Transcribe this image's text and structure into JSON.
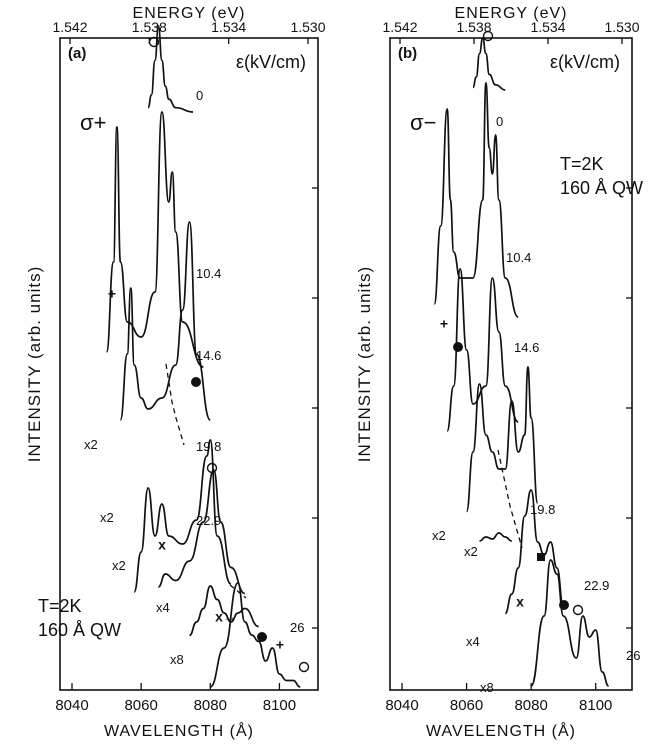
{
  "chart_data": [
    {
      "type": "line",
      "panel_label": "(a)",
      "polarization": "σ+",
      "field_header": "ε(kV/cm)",
      "xlabel": "WAVELENGTH  (Å)",
      "ylabel": "INTENSITY (arb. units)",
      "top_xlabel": "ENERGY  (eV)",
      "xlim": [
        8040,
        8110
      ],
      "xticks": [
        "8040",
        "8060",
        "8080",
        "8100"
      ],
      "top_ticks": [
        "1.542",
        "1.538",
        "1.534",
        "1.530"
      ],
      "sample_note": [
        "T=2K",
        "160 Å QW"
      ],
      "series": [
        {
          "field": "0",
          "multiplier": "",
          "x": [
            8062,
            8063,
            8064,
            8065,
            8066,
            8067,
            8068,
            8070,
            8075
          ],
          "y": [
            0.05,
            0.2,
            0.6,
            1.0,
            0.6,
            0.3,
            0.15,
            0.05,
            0.0
          ]
        },
        {
          "field": "10.4",
          "multiplier": "",
          "x": [
            8050,
            8052,
            8053,
            8054,
            8056,
            8060,
            8064,
            8066,
            8068,
            8069,
            8070,
            8072,
            8078
          ],
          "y": [
            0.1,
            0.4,
            0.85,
            0.4,
            0.2,
            0.15,
            0.3,
            0.9,
            0.6,
            0.7,
            0.5,
            0.2,
            0.05
          ]
        },
        {
          "field": "14.6",
          "multiplier": "x2",
          "x": [
            8054,
            8056,
            8057,
            8058,
            8060,
            8062,
            8066,
            8070,
            8072,
            8074,
            8076,
            8080
          ],
          "y": [
            0.1,
            0.4,
            0.7,
            0.35,
            0.2,
            0.15,
            0.2,
            0.35,
            0.6,
            1.0,
            0.4,
            0.1
          ]
        },
        {
          "field": "19.8",
          "multiplier": "x2",
          "x": [
            8058,
            8060,
            8062,
            8064,
            8066,
            8068,
            8072,
            8076,
            8079,
            8080,
            8082,
            8086
          ],
          "y": [
            0.05,
            0.3,
            0.7,
            0.4,
            0.6,
            0.4,
            0.35,
            0.5,
            0.9,
            1.0,
            0.4,
            0.1
          ]
        },
        {
          "field": "22.9",
          "multiplier": "x2",
          "x": [
            8065,
            8067,
            8070,
            8074,
            8078,
            8081,
            8083,
            8086,
            8090
          ],
          "y": [
            0.1,
            0.2,
            0.15,
            0.3,
            0.6,
            1.0,
            0.6,
            0.25,
            0.05
          ]
        },
        {
          "field": "22.9",
          "multiplier": "x4",
          "x": [
            8074,
            8076,
            8078,
            8080,
            8082,
            8084,
            8086,
            8088,
            8090,
            8094
          ],
          "y": [
            0.05,
            0.2,
            0.35,
            0.6,
            0.45,
            0.3,
            0.2,
            0.3,
            0.35,
            0.15
          ]
        },
        {
          "field": "26",
          "multiplier": "x8",
          "x": [
            8080,
            8084,
            8088,
            8090,
            8092,
            8094,
            8096,
            8098,
            8100,
            8102,
            8104,
            8106
          ],
          "y": [
            0.1,
            0.4,
            0.9,
            0.6,
            0.5,
            0.45,
            0.3,
            0.4,
            0.2,
            0.15,
            0.15,
            0.1
          ]
        }
      ],
      "peak_annotations": [
        {
          "field": "0",
          "marker": "○"
        },
        {
          "field": "10.4",
          "marker": "+"
        },
        {
          "field": "14.6",
          "marker": "●"
        },
        {
          "field": "19.8",
          "marker": "○"
        },
        {
          "field": "22.9",
          "marker": "x"
        },
        {
          "field": "26",
          "marker": "x→"
        },
        {
          "field": "26",
          "marker": "●"
        },
        {
          "field": "26",
          "marker": "+"
        },
        {
          "field": "26",
          "marker": "○"
        }
      ]
    },
    {
      "type": "line",
      "panel_label": "(b)",
      "polarization": "σ−",
      "field_header": "ε(kV/cm)",
      "xlabel": "WAVELENGTH  (Å)",
      "ylabel": "INTENSITY (arb. units)",
      "top_xlabel": "ENERGY  (eV)",
      "xlim": [
        8040,
        8110
      ],
      "xticks": [
        "8040",
        "8060",
        "8080",
        "8100"
      ],
      "top_ticks": [
        "1.542",
        "1.538",
        "1.534",
        "1.530"
      ],
      "sample_note": [
        "T=2K",
        "160 Å QW"
      ],
      "series": [
        {
          "field": "0",
          "multiplier": "",
          "x": [
            8062,
            8063,
            8064,
            8065,
            8066,
            8067,
            8069,
            8072
          ],
          "y": [
            0.05,
            0.25,
            0.7,
            1.0,
            0.7,
            0.3,
            0.1,
            0.0
          ]
        },
        {
          "field": "10.4",
          "multiplier": "",
          "x": [
            8050,
            8052,
            8054,
            8055,
            8056,
            8058,
            8062,
            8065,
            8066,
            8067,
            8068,
            8069,
            8070,
            8072,
            8076
          ],
          "y": [
            0.1,
            0.4,
            0.85,
            0.5,
            0.3,
            0.2,
            0.2,
            0.5,
            0.95,
            0.7,
            0.6,
            0.75,
            0.5,
            0.2,
            0.05
          ]
        },
        {
          "field": "14.6",
          "multiplier": "",
          "x": [
            8054,
            8056,
            8058,
            8060,
            8062,
            8066,
            8068,
            8070,
            8072,
            8076
          ],
          "y": [
            0.05,
            0.3,
            0.95,
            0.5,
            0.2,
            0.3,
            0.9,
            0.6,
            0.3,
            0.1
          ]
        },
        {
          "field": "19.8",
          "multiplier": "x2",
          "x": [
            8060,
            8062,
            8064,
            8066,
            8068,
            8070,
            8072,
            8074,
            8076,
            8078,
            8079,
            8080,
            8082
          ],
          "y": [
            0.05,
            0.4,
            0.8,
            0.5,
            0.4,
            0.3,
            0.3,
            0.7,
            0.4,
            0.5,
            0.9,
            0.6,
            0.1
          ]
        },
        {
          "field": "19.8",
          "multiplier": "x2",
          "x": [
            8064,
            8066,
            8068,
            8070,
            8072,
            8074
          ],
          "y": [
            0.1,
            0.2,
            0.15,
            0.3,
            0.2,
            0.1
          ]
        },
        {
          "field": "22.9",
          "multiplier": "x4",
          "x": [
            8072,
            8074,
            8076,
            8078,
            8080,
            8082,
            8084,
            8086,
            8088,
            8090
          ],
          "y": [
            0.05,
            0.2,
            0.4,
            0.8,
            1.0,
            0.6,
            0.5,
            0.6,
            0.4,
            0.1
          ]
        },
        {
          "field": "26",
          "multiplier": "x8",
          "x": [
            8080,
            8084,
            8086,
            8088,
            8090,
            8094,
            8096,
            8098,
            8100,
            8102,
            8104
          ],
          "y": [
            0.1,
            0.6,
            1.0,
            0.9,
            0.6,
            0.3,
            0.6,
            0.45,
            0.5,
            0.2,
            0.1
          ]
        }
      ],
      "peak_annotations": [
        {
          "field": "0",
          "marker": "○"
        },
        {
          "field": "10.4",
          "marker": "+"
        },
        {
          "field": "10.4",
          "marker": "●"
        },
        {
          "field": "22.9",
          "marker": "■"
        },
        {
          "field": "22.9",
          "marker": "x"
        },
        {
          "field": "22.9",
          "marker": "●"
        },
        {
          "field": "22.9",
          "marker": "○"
        }
      ]
    }
  ]
}
